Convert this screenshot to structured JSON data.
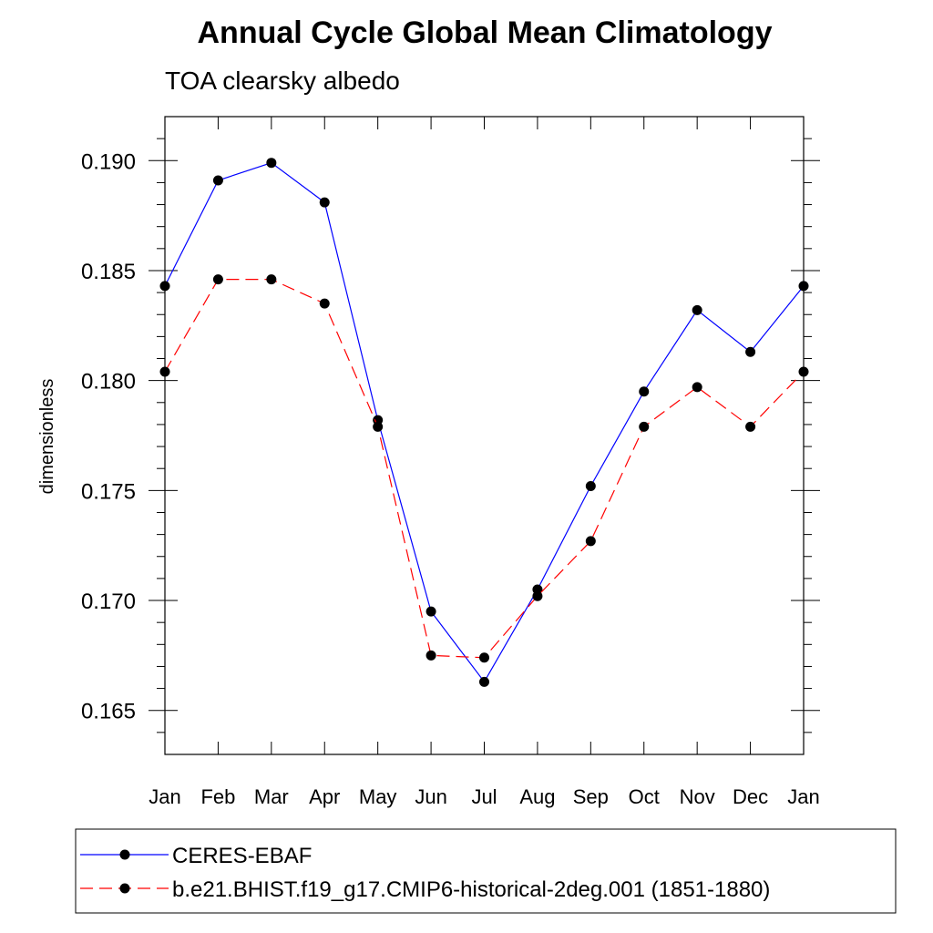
{
  "chart_data": {
    "type": "line",
    "title": "Annual Cycle Global Mean Climatology",
    "subtitle": "TOA clearsky albedo",
    "ylabel": "dimensionless",
    "xlabel": "",
    "categories": [
      "Jan",
      "Feb",
      "Mar",
      "Apr",
      "May",
      "Jun",
      "Jul",
      "Aug",
      "Sep",
      "Oct",
      "Nov",
      "Dec",
      "Jan"
    ],
    "ylim": [
      0.163,
      0.192
    ],
    "yticks": [
      0.165,
      0.17,
      0.175,
      0.18,
      0.185,
      0.19
    ],
    "ytick_labels": [
      "0.165",
      "0.170",
      "0.175",
      "0.180",
      "0.185",
      "0.190"
    ],
    "grid": false,
    "legend_position": "bottom",
    "series": [
      {
        "name": "CERES-EBAF",
        "color": "#0000ff",
        "dash": "solid",
        "marker": "circle",
        "values": [
          0.1843,
          0.1891,
          0.1899,
          0.1881,
          0.1782,
          0.1695,
          0.1663,
          0.1705,
          0.1752,
          0.1795,
          0.1832,
          0.1813,
          0.1843
        ]
      },
      {
        "name": "b.e21.BHIST.f19_g17.CMIP6-historical-2deg.001 (1851-1880)",
        "color": "#ff0000",
        "dash": "dashed",
        "marker": "circle",
        "values": [
          0.1804,
          0.1846,
          0.1846,
          0.1835,
          0.1779,
          0.1675,
          0.1674,
          0.1702,
          0.1727,
          0.1779,
          0.1797,
          0.1779,
          0.1804
        ]
      }
    ]
  }
}
